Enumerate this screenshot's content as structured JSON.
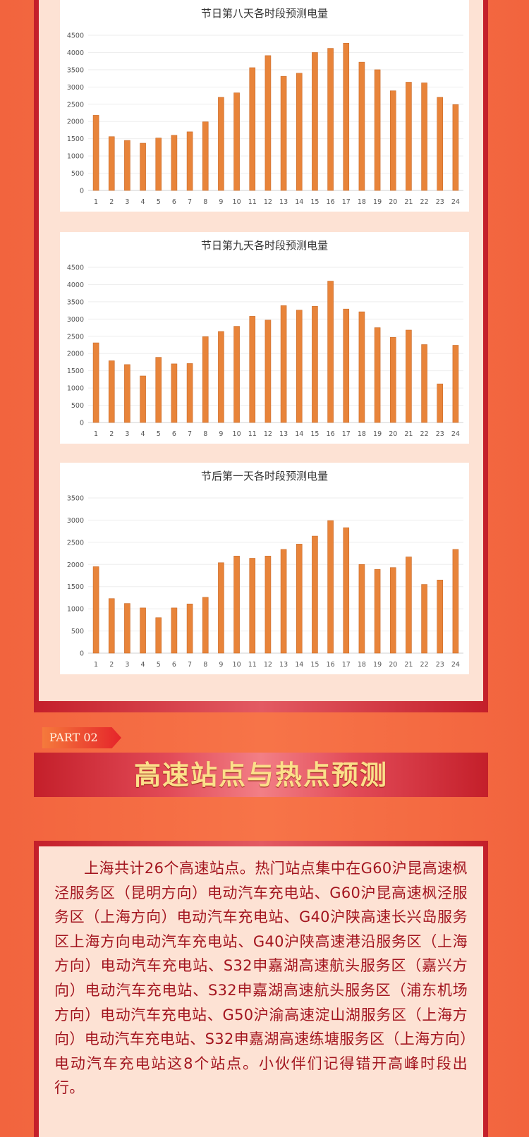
{
  "colors": {
    "background": "#f46b43",
    "frame": "#c41f2a",
    "panel": "#fde2d4",
    "bar": "#e8843a",
    "title_gold": "#fbe08a",
    "body_text": "#a3151f"
  },
  "chart_data": [
    {
      "type": "bar",
      "title": "节日第八天各时段预测电量",
      "categories": [
        "1",
        "2",
        "3",
        "4",
        "5",
        "6",
        "7",
        "8",
        "9",
        "10",
        "11",
        "12",
        "13",
        "14",
        "15",
        "16",
        "17",
        "18",
        "19",
        "20",
        "21",
        "22",
        "23",
        "24"
      ],
      "values": [
        2180,
        1560,
        1450,
        1370,
        1520,
        1600,
        1700,
        1990,
        2700,
        2830,
        3560,
        3910,
        3310,
        3400,
        4000,
        4120,
        4270,
        3720,
        3500,
        2890,
        3140,
        3120,
        2700,
        2490
      ],
      "ylim": [
        0,
        4500
      ],
      "yticks": [
        "0",
        "500",
        "1000",
        "1500",
        "2000",
        "2500",
        "3000",
        "3500",
        "4000",
        "4500"
      ],
      "grid": true
    },
    {
      "type": "bar",
      "title": "节日第九天各时段预测电量",
      "categories": [
        "1",
        "2",
        "3",
        "4",
        "5",
        "6",
        "7",
        "8",
        "9",
        "10",
        "11",
        "12",
        "13",
        "14",
        "15",
        "16",
        "17",
        "18",
        "19",
        "20",
        "21",
        "22",
        "23",
        "24"
      ],
      "values": [
        2310,
        1790,
        1680,
        1350,
        1890,
        1700,
        1710,
        2490,
        2640,
        2790,
        3080,
        2970,
        3390,
        3260,
        3370,
        4100,
        3290,
        3210,
        2750,
        2470,
        2680,
        2260,
        1120,
        2240
      ],
      "ylim": [
        0,
        4500
      ],
      "yticks": [
        "0",
        "500",
        "1000",
        "1500",
        "2000",
        "2500",
        "3000",
        "3500",
        "4000",
        "4500"
      ],
      "grid": true
    },
    {
      "type": "bar",
      "title": "节后第一天各时段预测电量",
      "categories": [
        "1",
        "2",
        "3",
        "4",
        "5",
        "6",
        "7",
        "8",
        "9",
        "10",
        "11",
        "12",
        "13",
        "14",
        "15",
        "16",
        "17",
        "18",
        "19",
        "20",
        "21",
        "22",
        "23",
        "24"
      ],
      "values": [
        1950,
        1230,
        1120,
        1020,
        800,
        1020,
        1110,
        1260,
        2040,
        2190,
        2140,
        2190,
        2340,
        2460,
        2640,
        2990,
        2830,
        2000,
        1890,
        1930,
        2170,
        1550,
        1650,
        2340
      ],
      "ylim": [
        0,
        3500
      ],
      "yticks": [
        "0",
        "500",
        "1000",
        "1500",
        "2000",
        "2500",
        "3000",
        "3500"
      ],
      "grid": true
    }
  ],
  "section2": {
    "part_label": "PART 02",
    "title": "高速站点与热点预测",
    "paragraph": "上海共计26个高速站点。热门站点集中在G60沪昆高速枫泾服务区（昆明方向）电动汽车充电站、G60沪昆高速枫泾服务区（上海方向）电动汽车充电站、G40沪陕高速长兴岛服务区上海方向电动汽车充电站、G40沪陕高速港沿服务区（上海方向）电动汽车充电站、S32申嘉湖高速航头服务区（嘉兴方向）电动汽车充电站、S32申嘉湖高速航头服务区（浦东机场方向）电动汽车充电站、G50沪渝高速淀山湖服务区（上海方向）电动汽车充电站、S32申嘉湖高速练塘服务区（上海方向）电动汽车充电站这8个站点。小伙伴们记得错开高峰时段出行。"
  }
}
